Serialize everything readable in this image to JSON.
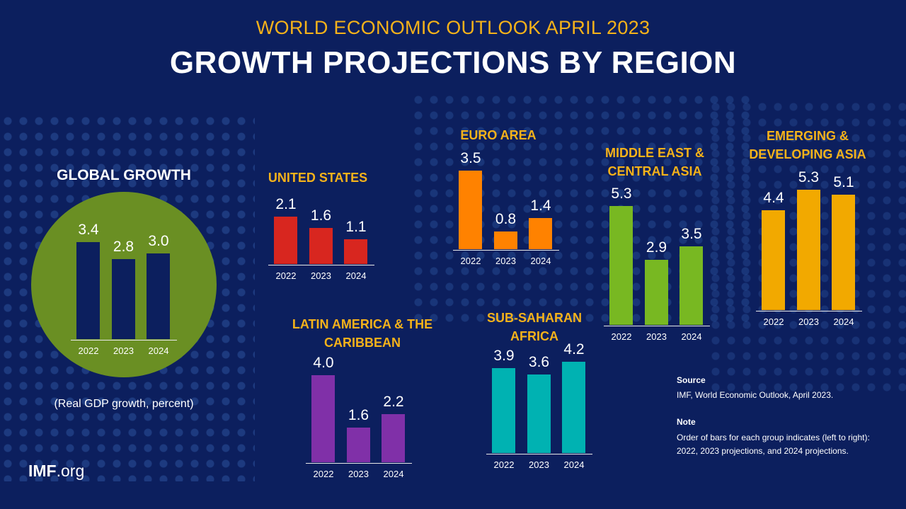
{
  "supertitle": "WORLD ECONOMIC OUTLOOK APRIL 2023",
  "title": "GROWTH PROJECTIONS BY REGION",
  "subtitle": "(Real GDP growth, percent)",
  "logo": {
    "bold": "IMF",
    "rest": ".org"
  },
  "source": {
    "heading": "Source",
    "text": "IMF, World Economic Outlook, April 2023."
  },
  "note": {
    "heading": "Note",
    "text": "Order of bars for each group indicates (left to right): 2022, 2023 projections, and 2024 projections."
  },
  "chart_data": [
    {
      "type": "bar",
      "title": "GLOBAL GROWTH",
      "categories": [
        "2022",
        "2023",
        "2024"
      ],
      "values": [
        3.4,
        2.8,
        3.0
      ],
      "color": "#0c1f5e",
      "background": "#6a8f23"
    },
    {
      "type": "bar",
      "title": "UNITED STATES",
      "categories": [
        "2022",
        "2023",
        "2024"
      ],
      "values": [
        2.1,
        1.6,
        1.1
      ],
      "color": "#d8261f"
    },
    {
      "type": "bar",
      "title": "EURO AREA",
      "categories": [
        "2022",
        "2023",
        "2024"
      ],
      "values": [
        3.5,
        0.8,
        1.4
      ],
      "color": "#ff8200"
    },
    {
      "type": "bar",
      "title": "MIDDLE EAST &\nCENTRAL ASIA",
      "categories": [
        "2022",
        "2023",
        "2024"
      ],
      "values": [
        5.3,
        2.9,
        3.5
      ],
      "color": "#78b822"
    },
    {
      "type": "bar",
      "title": "EMERGING &\nDEVELOPING ASIA",
      "categories": [
        "2022",
        "2023",
        "2024"
      ],
      "values": [
        4.4,
        5.3,
        5.1
      ],
      "color": "#f2a900"
    },
    {
      "type": "bar",
      "title": "LATIN AMERICA & THE\nCARIBBEAN",
      "categories": [
        "2022",
        "2023",
        "2024"
      ],
      "values": [
        4.0,
        1.6,
        2.2
      ],
      "color": "#8030a8"
    },
    {
      "type": "bar",
      "title": "SUB-SAHARAN\nAFRICA",
      "categories": [
        "2022",
        "2023",
        "2024"
      ],
      "values": [
        3.9,
        3.6,
        4.2
      ],
      "color": "#00b2b2"
    }
  ]
}
